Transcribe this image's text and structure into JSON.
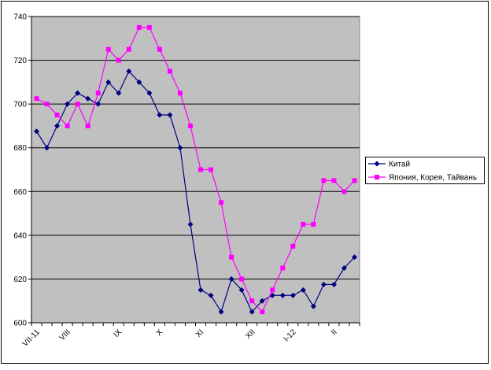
{
  "chart_data": {
    "type": "line",
    "categories": [
      "VII-11",
      null,
      null,
      "VIII",
      null,
      null,
      null,
      null,
      "IX",
      null,
      null,
      null,
      "X",
      null,
      null,
      null,
      "XI",
      null,
      null,
      null,
      null,
      "XII",
      null,
      null,
      null,
      "I-12",
      null,
      null,
      null,
      "II",
      null,
      null
    ],
    "series": [
      {
        "name": "Китай",
        "color": "#000080",
        "marker": "diamond",
        "values": [
          687.5,
          680,
          690,
          700,
          705,
          702.5,
          700,
          710,
          705,
          715,
          710,
          705,
          695,
          695,
          680,
          645,
          615,
          612.5,
          605,
          620,
          615,
          605,
          610,
          612.5,
          612.5,
          612.5,
          615,
          607.5,
          617.5,
          617.5,
          625,
          630
        ]
      },
      {
        "name": "Япония, Корея, Тайвань",
        "color": "#ff00ff",
        "marker": "square",
        "values": [
          702.5,
          700,
          695,
          690,
          700,
          690,
          705,
          725,
          720,
          725,
          735,
          735,
          725,
          715,
          705,
          690,
          670,
          670,
          655,
          630,
          620,
          610,
          605,
          615,
          625,
          635,
          645,
          645,
          665,
          665,
          660,
          665
        ]
      }
    ],
    "ylim": [
      600,
      740
    ],
    "yticks": [
      600,
      620,
      640,
      660,
      680,
      700,
      720,
      740
    ],
    "grid": true,
    "legend": "right"
  }
}
